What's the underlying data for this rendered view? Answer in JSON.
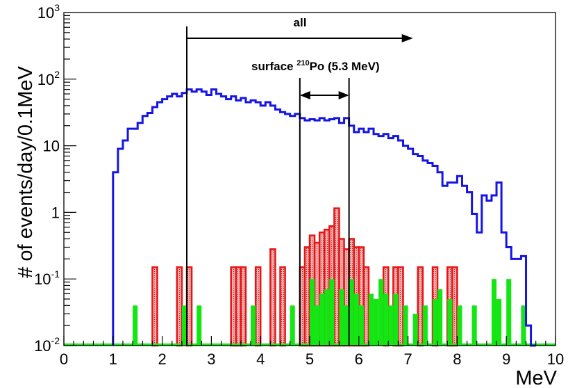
{
  "chart_data": {
    "type": "histogram",
    "title": "",
    "xlabel": "MeV",
    "ylabel": "# of events/day/0.1MeV",
    "xlim": [
      0,
      10
    ],
    "ylim": [
      0.01,
      1000
    ],
    "yscale": "log",
    "bin_width": 0.1,
    "x_ticks": [
      "0",
      "1",
      "2",
      "3",
      "4",
      "5",
      "6",
      "7",
      "8",
      "9",
      "10"
    ],
    "y_ticks": [
      {
        "base": "10",
        "exp": "-2",
        "value": 0.01
      },
      {
        "base": "10",
        "exp": "-1",
        "value": 0.1
      },
      {
        "base": "1",
        "exp": "",
        "value": 1
      },
      {
        "base": "10",
        "exp": "",
        "value": 10
      },
      {
        "base": "10",
        "exp": "2",
        "value": 100
      },
      {
        "base": "10",
        "exp": "3",
        "value": 1000
      }
    ],
    "grid": false,
    "legend": "none",
    "colors": {
      "all": "#1414e6",
      "red": "#e81414",
      "red_fill": "#e8b0b0",
      "green": "#14e614"
    },
    "series": [
      {
        "color_key": "all",
        "points": [
          [
            1.0,
            4
          ],
          [
            1.1,
            9
          ],
          [
            1.2,
            12
          ],
          [
            1.3,
            18
          ],
          [
            1.4,
            18
          ],
          [
            1.5,
            22
          ],
          [
            1.6,
            28
          ],
          [
            1.7,
            31
          ],
          [
            1.8,
            38
          ],
          [
            1.9,
            45
          ],
          [
            2.0,
            50
          ],
          [
            2.1,
            55
          ],
          [
            2.2,
            60
          ],
          [
            2.3,
            55
          ],
          [
            2.4,
            62
          ],
          [
            2.5,
            70
          ],
          [
            2.6,
            65
          ],
          [
            2.7,
            70
          ],
          [
            2.8,
            65
          ],
          [
            2.9,
            58
          ],
          [
            3.0,
            70
          ],
          [
            3.1,
            60
          ],
          [
            3.2,
            55
          ],
          [
            3.3,
            50
          ],
          [
            3.4,
            55
          ],
          [
            3.5,
            48
          ],
          [
            3.6,
            52
          ],
          [
            3.7,
            45
          ],
          [
            3.8,
            48
          ],
          [
            3.9,
            45
          ],
          [
            4.0,
            40
          ],
          [
            4.1,
            45
          ],
          [
            4.2,
            40
          ],
          [
            4.3,
            35
          ],
          [
            4.4,
            32
          ],
          [
            4.5,
            30
          ],
          [
            4.6,
            28
          ],
          [
            4.7,
            30
          ],
          [
            4.8,
            26
          ],
          [
            4.9,
            24
          ],
          [
            5.0,
            25
          ],
          [
            5.1,
            24
          ],
          [
            5.2,
            26
          ],
          [
            5.3,
            24
          ],
          [
            5.4,
            25
          ],
          [
            5.5,
            26
          ],
          [
            5.6,
            22
          ],
          [
            5.7,
            26
          ],
          [
            5.8,
            20
          ],
          [
            5.9,
            16
          ],
          [
            6.0,
            18
          ],
          [
            6.1,
            16
          ],
          [
            6.2,
            18
          ],
          [
            6.3,
            15
          ],
          [
            6.4,
            14
          ],
          [
            6.5,
            15
          ],
          [
            6.6,
            13
          ],
          [
            6.7,
            14
          ],
          [
            6.8,
            12
          ],
          [
            6.9,
            10
          ],
          [
            7.0,
            9
          ],
          [
            7.1,
            7.5
          ],
          [
            7.2,
            7
          ],
          [
            7.3,
            6
          ],
          [
            7.4,
            5.5
          ],
          [
            7.5,
            5
          ],
          [
            7.6,
            4
          ],
          [
            7.7,
            2.5
          ],
          [
            7.8,
            2.8
          ],
          [
            7.9,
            2.8
          ],
          [
            8.0,
            3.5
          ],
          [
            8.1,
            2.5
          ],
          [
            8.2,
            2.0
          ],
          [
            8.3,
            0.95
          ],
          [
            8.4,
            0.5
          ],
          [
            8.5,
            1.8
          ],
          [
            8.6,
            1.5
          ],
          [
            8.7,
            1.8
          ],
          [
            8.8,
            2.8
          ],
          [
            8.9,
            0.5
          ],
          [
            9.0,
            0.3
          ],
          [
            9.1,
            0.2
          ],
          [
            9.2,
            0.2
          ],
          [
            9.3,
            0.22
          ],
          [
            9.4,
            0.02
          ],
          [
            9.5,
            0.01
          ]
        ]
      },
      {
        "color_key": "red",
        "points": [
          [
            1.8,
            0.15
          ],
          [
            2.3,
            0.15
          ],
          [
            2.5,
            0.15
          ],
          [
            3.4,
            0.15
          ],
          [
            3.5,
            0.15
          ],
          [
            3.6,
            0.15
          ],
          [
            3.9,
            0.15
          ],
          [
            4.2,
            0.28
          ],
          [
            4.4,
            0.15
          ],
          [
            4.8,
            0.15
          ],
          [
            4.9,
            0.3
          ],
          [
            5.0,
            0.45
          ],
          [
            5.1,
            0.35
          ],
          [
            5.2,
            0.5
          ],
          [
            5.3,
            0.55
          ],
          [
            5.4,
            0.62
          ],
          [
            5.5,
            1.15
          ],
          [
            5.6,
            0.4
          ],
          [
            5.7,
            0.28
          ],
          [
            5.8,
            0.4
          ],
          [
            5.9,
            0.3
          ],
          [
            6.0,
            0.3
          ],
          [
            6.1,
            0.15
          ],
          [
            6.5,
            0.15
          ],
          [
            6.7,
            0.15
          ],
          [
            6.8,
            0.15
          ],
          [
            7.2,
            0.15
          ],
          [
            7.5,
            0.15
          ],
          [
            7.8,
            0.15
          ],
          [
            7.9,
            0.15
          ]
        ]
      },
      {
        "color_key": "green",
        "points": [
          [
            1.4,
            0.04
          ],
          [
            2.4,
            0.04
          ],
          [
            2.7,
            0.04
          ],
          [
            3.8,
            0.04
          ],
          [
            4.6,
            0.04
          ],
          [
            5.0,
            0.1
          ],
          [
            5.1,
            0.04
          ],
          [
            5.2,
            0.06
          ],
          [
            5.3,
            0.07
          ],
          [
            5.4,
            0.1
          ],
          [
            5.6,
            0.07
          ],
          [
            5.7,
            0.04
          ],
          [
            5.8,
            0.1
          ],
          [
            5.9,
            0.06
          ],
          [
            6.0,
            0.04
          ],
          [
            6.2,
            0.06
          ],
          [
            6.3,
            0.05
          ],
          [
            6.4,
            0.1
          ],
          [
            6.5,
            0.06
          ],
          [
            6.6,
            0.04
          ],
          [
            6.7,
            0.06
          ],
          [
            6.9,
            0.04
          ],
          [
            7.1,
            0.03
          ],
          [
            7.3,
            0.04
          ],
          [
            7.5,
            0.05
          ],
          [
            7.6,
            0.07
          ],
          [
            7.8,
            0.05
          ],
          [
            8.0,
            0.04
          ],
          [
            8.3,
            0.04
          ],
          [
            8.7,
            0.1
          ],
          [
            8.8,
            0.05
          ],
          [
            9.0,
            0.1
          ],
          [
            9.3,
            0.04
          ]
        ]
      }
    ],
    "annotations": {
      "all": {
        "label": "all",
        "cut_x": 2.5,
        "arrow_to_x": 7.1
      },
      "po": {
        "label_prefix": "surface ",
        "label_sup": "210",
        "label_suffix": "Po (5.3 MeV)",
        "x_low": 4.8,
        "x_high": 5.8
      }
    }
  }
}
